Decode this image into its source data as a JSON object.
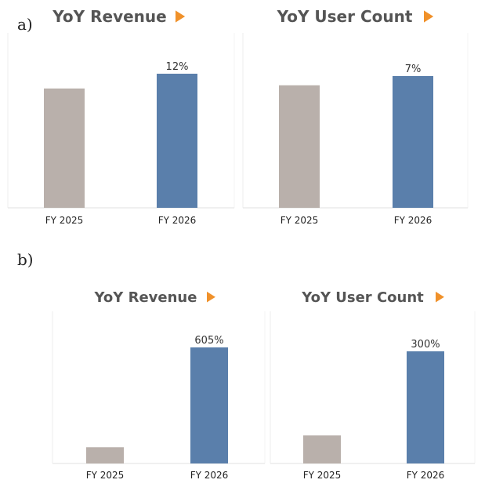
{
  "panels": [
    {
      "label": "a)",
      "charts": [
        {
          "type": "bar",
          "title": "YoY Revenue",
          "categories": [
            "FY 2025",
            "FY 2026"
          ],
          "values": [
            89,
            100
          ],
          "labels": [
            "",
            "12%"
          ],
          "colors": [
            "#b9b0ab",
            "#5a7fab"
          ]
        },
        {
          "type": "bar",
          "title": "YoY User Count",
          "categories": [
            "FY 2025",
            "FY 2026"
          ],
          "values": [
            93,
            100
          ],
          "labels": [
            "",
            "7%"
          ],
          "colors": [
            "#b9b0ab",
            "#5a7fab"
          ]
        }
      ]
    },
    {
      "label": "b)",
      "charts": [
        {
          "type": "bar",
          "title": "YoY Revenue",
          "categories": [
            "FY 2025",
            "FY 2026"
          ],
          "values": [
            14,
            100
          ],
          "labels": [
            "",
            "605%"
          ],
          "colors": [
            "#b9b0ab",
            "#5a7fab"
          ]
        },
        {
          "type": "bar",
          "title": "YoY User Count",
          "categories": [
            "FY 2025",
            "FY 2026"
          ],
          "values": [
            25,
            100
          ],
          "labels": [
            "",
            "300%"
          ],
          "colors": [
            "#b9b0ab",
            "#5a7fab"
          ]
        }
      ]
    }
  ],
  "accent_color": "#f0912a",
  "title_color": "#555555"
}
